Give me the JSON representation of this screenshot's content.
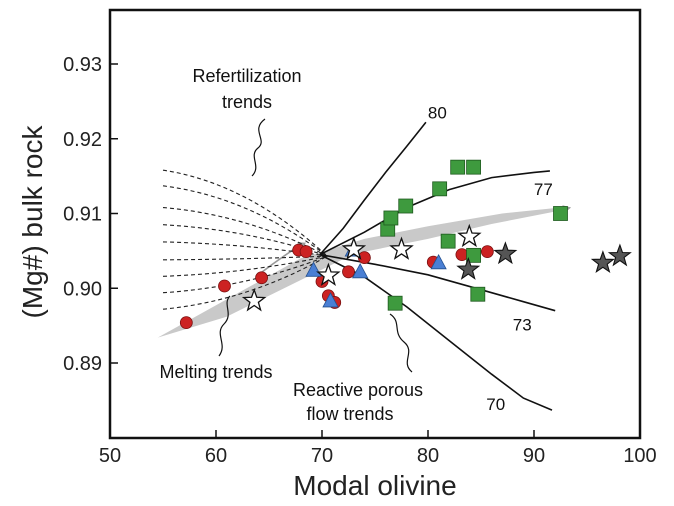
{
  "chart_data": {
    "type": "scatter",
    "xlabel": "Modal olivine",
    "ylabel": "(Mg#) bulk rock",
    "xlim": [
      50,
      100
    ],
    "ylim": [
      0.88,
      0.935
    ],
    "x_ticks": [
      {
        "v": 50,
        "label": "50"
      },
      {
        "v": 60,
        "label": "60"
      },
      {
        "v": 70,
        "label": "70"
      },
      {
        "v": 80,
        "label": "80"
      },
      {
        "v": 90,
        "label": "90"
      },
      {
        "v": 100,
        "label": "100"
      }
    ],
    "y_ticks": [
      {
        "v": 0.89,
        "label": "0.89"
      },
      {
        "v": 0.9,
        "label": "0.90"
      },
      {
        "v": 0.91,
        "label": "0.91"
      },
      {
        "v": 0.92,
        "label": "0.92"
      },
      {
        "v": 0.93,
        "label": "0.93"
      }
    ],
    "grid": false,
    "series": [
      {
        "marker": "circle",
        "color": "#cc2222",
        "points": [
          [
            57.2,
            0.8954
          ],
          [
            60.8,
            0.9003
          ],
          [
            64.3,
            0.9014
          ],
          [
            67.8,
            0.9051
          ],
          [
            68.5,
            0.9049
          ],
          [
            70,
            0.9009
          ],
          [
            70.6,
            0.899
          ],
          [
            71.2,
            0.8981
          ],
          [
            72.5,
            0.9022
          ],
          [
            74,
            0.9041
          ],
          [
            80.5,
            0.9035
          ],
          [
            83.2,
            0.9045
          ],
          [
            85.6,
            0.9049
          ]
        ]
      },
      {
        "marker": "triangle",
        "color": "#4a7fd4",
        "points": [
          [
            69.2,
            0.9024
          ],
          [
            70.8,
            0.8983
          ],
          [
            72.9,
            0.9051
          ],
          [
            73.6,
            0.9022
          ],
          [
            81,
            0.9034
          ]
        ]
      },
      {
        "marker": "square",
        "color": "#3e9a3e",
        "points": [
          [
            76.2,
            0.9079
          ],
          [
            76.5,
            0.9094
          ],
          [
            77.9,
            0.911
          ],
          [
            81.1,
            0.9133
          ],
          [
            82.8,
            0.9162
          ],
          [
            84.3,
            0.9162
          ],
          [
            81.9,
            0.9063
          ],
          [
            84.3,
            0.9044
          ],
          [
            84.7,
            0.8992
          ],
          [
            92.5,
            0.91
          ],
          [
            76.9,
            0.898
          ]
        ]
      },
      {
        "marker": "open-star",
        "color": "#ffffff",
        "points": [
          [
            63.6,
            0.8983
          ],
          [
            70.6,
            0.9017
          ],
          [
            73,
            0.9052
          ],
          [
            77.5,
            0.9052
          ],
          [
            83.9,
            0.9069
          ]
        ]
      },
      {
        "marker": "filled-star",
        "color": "#555555",
        "points": [
          [
            83.8,
            0.9025
          ],
          [
            87.3,
            0.9046
          ],
          [
            96.5,
            0.9034
          ],
          [
            98.1,
            0.9043
          ]
        ]
      }
    ],
    "curves": [
      {
        "label": "80",
        "points": [
          [
            69.8,
            0.9045
          ],
          [
            72,
            0.908
          ],
          [
            74,
            0.9118
          ],
          [
            76,
            0.9155
          ],
          [
            78,
            0.919
          ],
          [
            79.8,
            0.9222
          ]
        ]
      },
      {
        "label": "77",
        "points": [
          [
            69.8,
            0.9045
          ],
          [
            74,
            0.9075
          ],
          [
            78,
            0.9108
          ],
          [
            82,
            0.9132
          ],
          [
            86,
            0.9148
          ],
          [
            90,
            0.9155
          ],
          [
            91.5,
            0.9157
          ]
        ]
      },
      {
        "label": "73",
        "points": [
          [
            69.8,
            0.9045
          ],
          [
            75,
            0.9032
          ],
          [
            80,
            0.9018
          ],
          [
            85,
            0.8998
          ],
          [
            89,
            0.8982
          ],
          [
            92,
            0.897
          ]
        ]
      },
      {
        "label": "70",
        "points": [
          [
            69.8,
            0.9045
          ],
          [
            74,
            0.9015
          ],
          [
            78,
            0.8975
          ],
          [
            82,
            0.893
          ],
          [
            86,
            0.8885
          ],
          [
            89,
            0.8853
          ],
          [
            91.7,
            0.8837
          ]
        ]
      }
    ],
    "refertilization_endpoints_y": [
      0.9158,
      0.9137,
      0.9108,
      0.9085,
      0.9062,
      0.9038,
      0.9016,
      0.8994,
      0.8972
    ],
    "annotations": {
      "refertilization": [
        "Refertilization",
        "trends"
      ],
      "melting": [
        "Melting trends"
      ],
      "reactive": [
        "Reactive porous",
        "flow trends"
      ]
    },
    "colors": {
      "frame": "#111111",
      "band": "#c9c9c9",
      "band_arrow": "#9a9a9a"
    }
  }
}
